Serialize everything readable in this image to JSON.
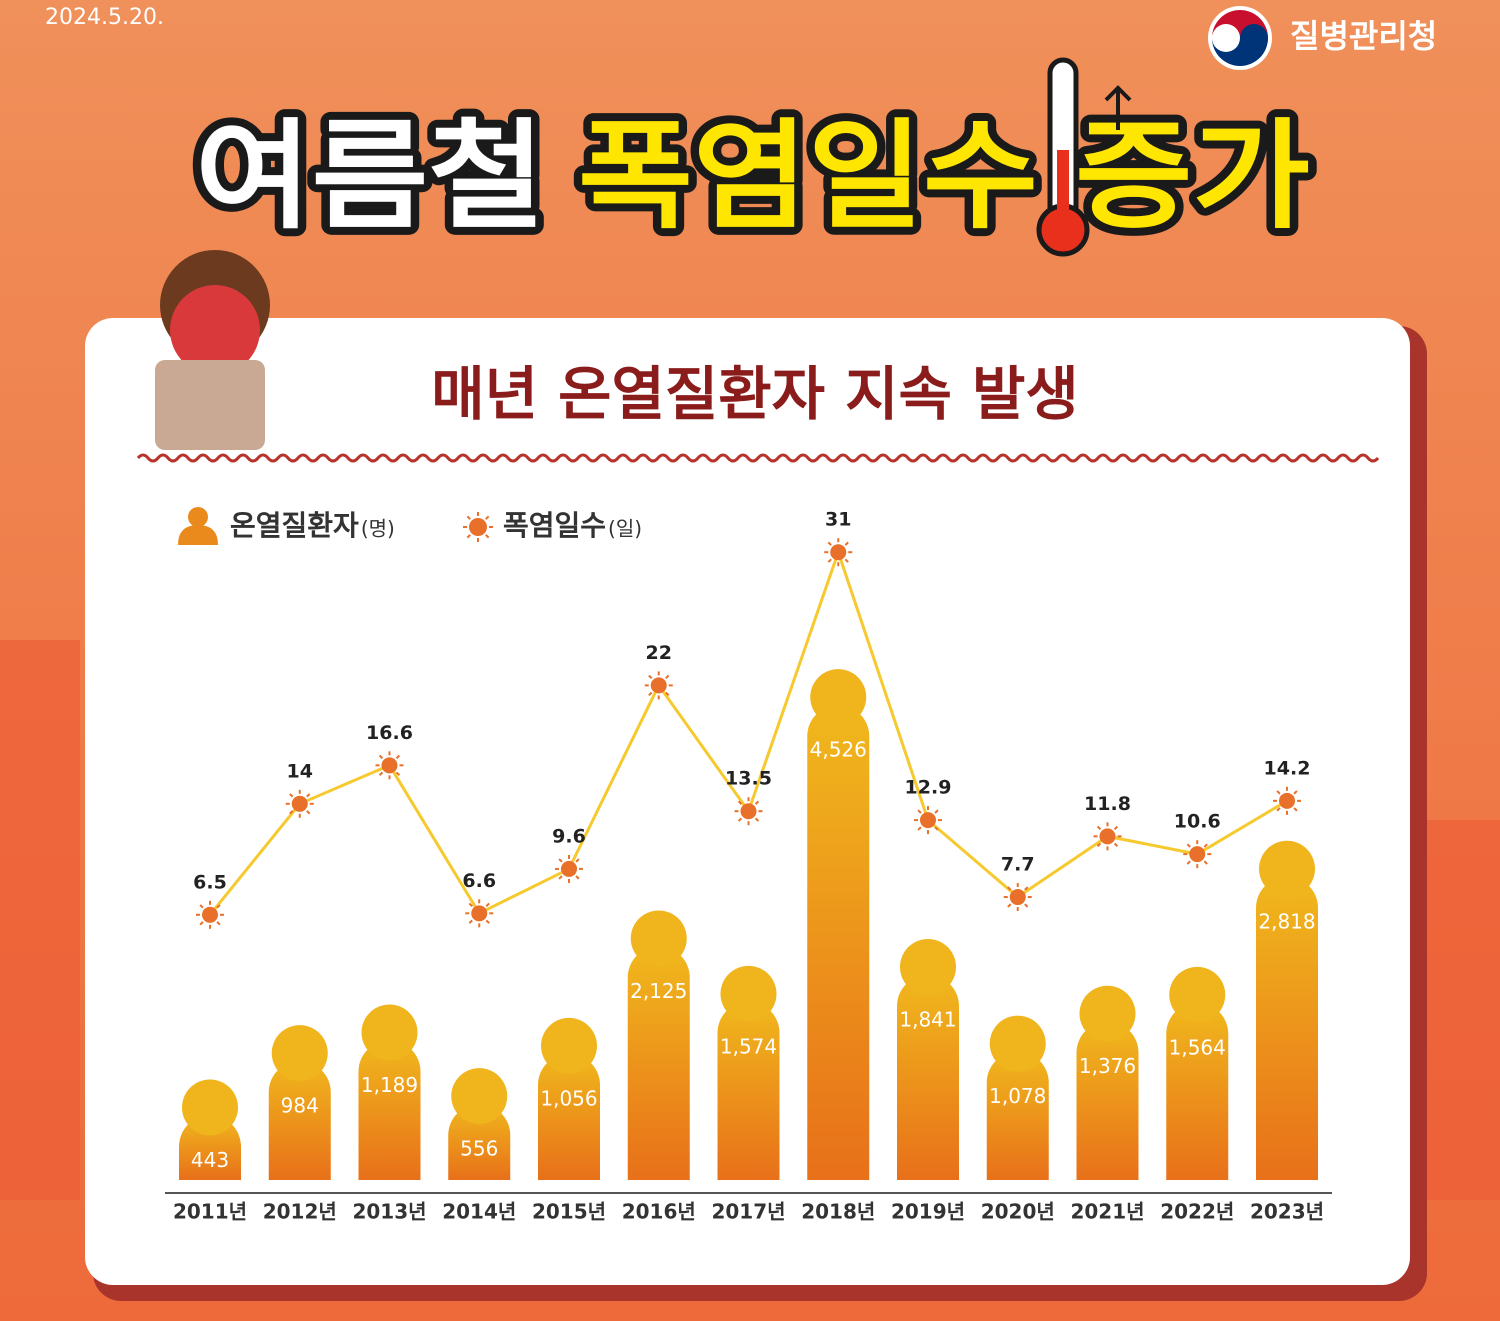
{
  "header": {
    "date": "2024.5.20.",
    "agency": "질병관리청"
  },
  "title": {
    "part1": "여름철",
    "part2": "폭염일수",
    "part3": "증가"
  },
  "chart_data": {
    "type": "bar_line",
    "title": "매년 온열질환자 지속 발생",
    "categories": [
      "2011년",
      "2012년",
      "2013년",
      "2014년",
      "2015년",
      "2016년",
      "2017년",
      "2018년",
      "2019년",
      "2020년",
      "2021년",
      "2022년",
      "2023년"
    ],
    "series": [
      {
        "name": "온열질환자",
        "unit": "(명)",
        "type": "bar",
        "color": "#ea8a1c",
        "values": [
          443,
          984,
          1189,
          556,
          1056,
          2125,
          1574,
          4526,
          1841,
          1078,
          1376,
          1564,
          2818
        ],
        "value_labels": [
          "443",
          "984",
          "1,189",
          "556",
          "1,056",
          "2,125",
          "1,574",
          "4,526",
          "1,841",
          "1,078",
          "1,376",
          "1,564",
          "2,818"
        ]
      },
      {
        "name": "폭염일수",
        "unit": "(일)",
        "type": "line",
        "color": "#e8702a",
        "values": [
          6.5,
          14,
          16.6,
          6.6,
          9.6,
          22,
          13.5,
          31,
          12.9,
          7.7,
          11.8,
          10.6,
          14.2
        ]
      }
    ]
  }
}
